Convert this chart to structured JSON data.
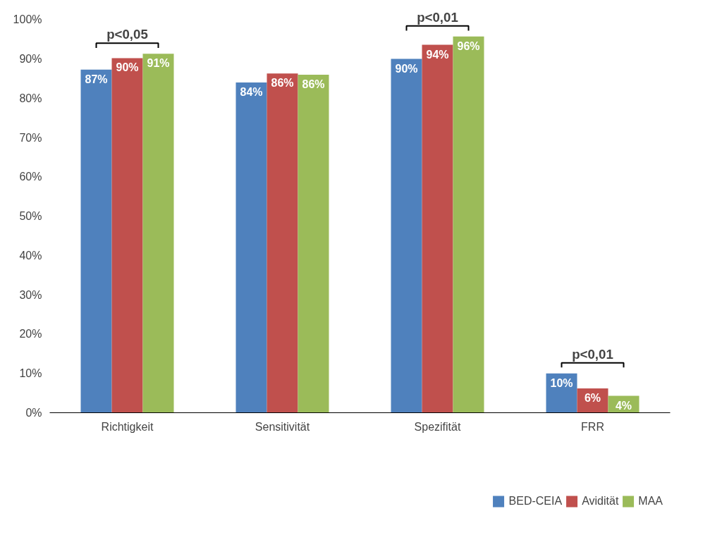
{
  "chart_data": {
    "type": "bar",
    "categories": [
      "Richtigkeit",
      "Sensitivität",
      "Spezifität",
      "FRR"
    ],
    "series": [
      {
        "name": "BED-CEIA",
        "color": "#4f81bd",
        "values": [
          87.3,
          84.0,
          90.0,
          10.0
        ],
        "value_labels": [
          "87%",
          "84%",
          "90%",
          "10%"
        ]
      },
      {
        "name": "Avidität",
        "color": "#c0504d",
        "values": [
          90.2,
          86.3,
          93.6,
          6.2
        ],
        "value_labels": [
          "90%",
          "86%",
          "94%",
          "6%"
        ]
      },
      {
        "name": "MAA",
        "color": "#9bbb59",
        "values": [
          91.3,
          86.0,
          95.7,
          4.3
        ],
        "value_labels": [
          "91%",
          "86%",
          "96%",
          "4%"
        ]
      }
    ],
    "ylim": [
      0,
      100
    ],
    "yticks": [
      {
        "value": 0,
        "label": "0%"
      },
      {
        "value": 10,
        "label": "10%"
      },
      {
        "value": 20,
        "label": "20%"
      },
      {
        "value": 30,
        "label": "30%"
      },
      {
        "value": 40,
        "label": "40%"
      },
      {
        "value": 50,
        "label": "50%"
      },
      {
        "value": 60,
        "label": "60%"
      },
      {
        "value": 70,
        "label": "70%"
      },
      {
        "value": 80,
        "label": "80%"
      },
      {
        "value": 90,
        "label": "90%"
      },
      {
        "value": 100,
        "label": "100%"
      }
    ],
    "annotations": [
      "p<0,05",
      "p<0,01",
      "p<0,01"
    ],
    "legend": "bottom",
    "grid": false
  }
}
